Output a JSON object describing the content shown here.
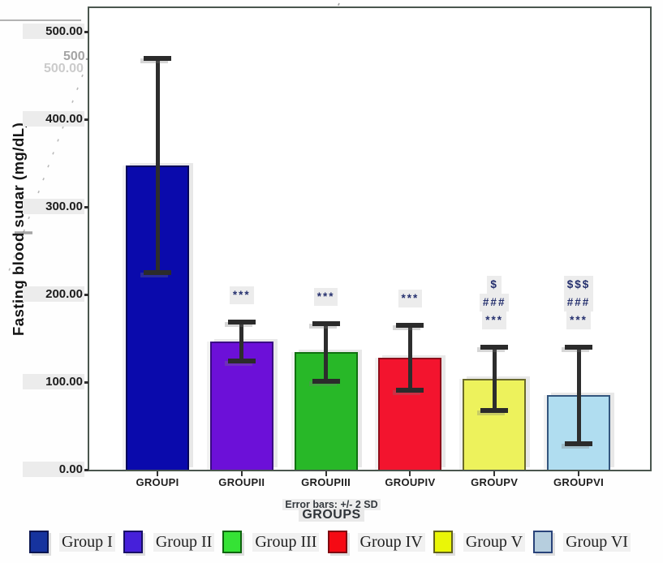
{
  "chart_data": {
    "type": "bar",
    "title": "",
    "ylabel": "Fasting blood sugar (mg/dL)",
    "xlabel": "GROUPS",
    "footnote": "Error bars: +/- 2 SD",
    "categories": [
      "GROUPI",
      "GROUPII",
      "GROUPIII",
      "GROUPIV",
      "GROUPV",
      "GROUPVI"
    ],
    "values": [
      347,
      146,
      134,
      128,
      104,
      85
    ],
    "error_upper": [
      471,
      170,
      169,
      167,
      142,
      142
    ],
    "error_lower": [
      223,
      122,
      99,
      89,
      66,
      28
    ],
    "error_bar_definition": "+/- 2 SD",
    "annotations": [
      [],
      [
        "***"
      ],
      [
        "***"
      ],
      [
        "***"
      ],
      [
        "$",
        "###",
        "***"
      ],
      [
        "$$$",
        "###",
        "***"
      ]
    ],
    "yticks": [
      {
        "value": 0,
        "label": "0.00"
      },
      {
        "value": 100,
        "label": "100.00"
      },
      {
        "value": 200,
        "label": "200.00"
      },
      {
        "value": 300,
        "label": "300.00"
      },
      {
        "value": 400,
        "label": "400.00"
      },
      {
        "value": 500,
        "label": "500.00"
      }
    ],
    "ylim": [
      0,
      527
    ],
    "grid": false,
    "legend_position": "bottom",
    "bar_colors": [
      "#0a0aac",
      "#6c10d8",
      "#28b828",
      "#f3142e",
      "#edf25c",
      "#b0ddf0"
    ],
    "bar_border_colors": [
      "#06065a",
      "#3a0a84",
      "#107010",
      "#8e0e1a",
      "#6a6a2a",
      "#33567e"
    ]
  },
  "legend": {
    "items": [
      {
        "label": "Group I",
        "color": "#16339e",
        "border": "#0a1550"
      },
      {
        "label": "Group II",
        "color": "#4620da",
        "border": "#181066"
      },
      {
        "label": "Group III",
        "color": "#35e235",
        "border": "#0e640e"
      },
      {
        "label": "Group IV",
        "color": "#f50a14",
        "border": "#7e0a10"
      },
      {
        "label": "Group V",
        "color": "#eaf607",
        "border": "#63631c"
      },
      {
        "label": "Group VI",
        "color": "#b6cede",
        "border": "#29437a"
      }
    ]
  },
  "artifacts": {
    "ghost_500a": "500.00",
    "ghost_500b": "500.00",
    "ghost_400": "400.00"
  }
}
